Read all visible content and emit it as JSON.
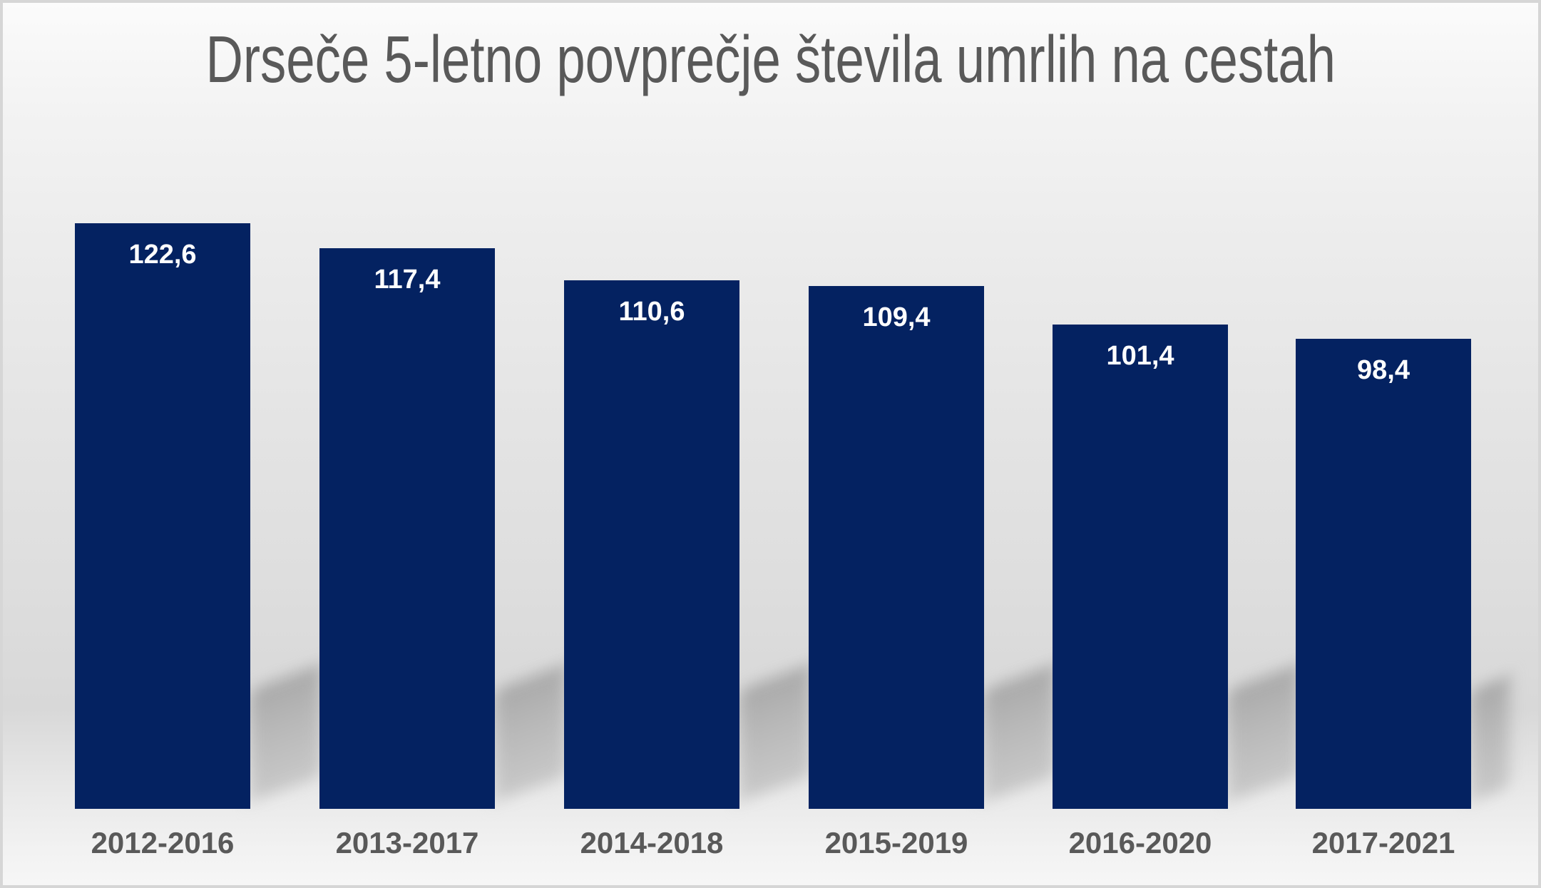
{
  "title": "Drseče 5-letno povprečje števila umrlih na cestah",
  "chart_data": {
    "type": "bar",
    "title": "Drseče 5-letno povprečje števila umrlih na cestah",
    "categories": [
      "2012-2016",
      "2013-2017",
      "2014-2018",
      "2015-2019",
      "2016-2020",
      "2017-2021"
    ],
    "values": [
      122.6,
      117.4,
      110.6,
      109.4,
      101.4,
      98.4
    ],
    "value_labels": [
      "122,6",
      "117,4",
      "110,6",
      "109,4",
      "101,4",
      "98,4"
    ],
    "decimal_separator": ",",
    "baseline": 0,
    "grid": false,
    "legend": false,
    "axes_visible": false,
    "value_labels_position": "inside-top",
    "colors": {
      "bar": "#042261",
      "value_label": "#ffffff",
      "category_label": "#595959",
      "title": "#595959",
      "shadow": "#b9b9b9",
      "frame_border": "#d6d6d6"
    }
  }
}
